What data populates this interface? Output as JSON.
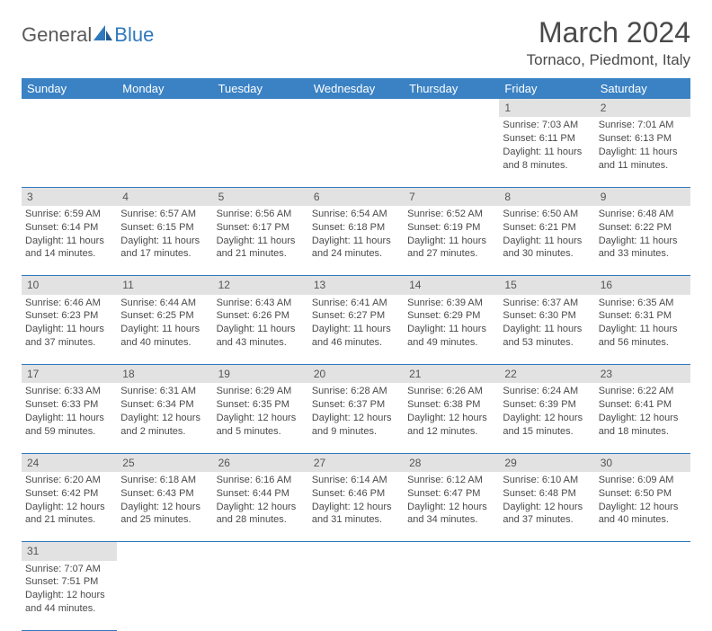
{
  "logo": {
    "text1": "General",
    "text2": "Blue"
  },
  "title": "March 2024",
  "location": "Tornaco, Piedmont, Italy",
  "colors": {
    "header_bg": "#3a82c4",
    "header_text": "#ffffff",
    "daynum_bg": "#e2e2e2",
    "row_border": "#2f78bd",
    "body_text": "#4a4a4a"
  },
  "daysOfWeek": [
    "Sunday",
    "Monday",
    "Tuesday",
    "Wednesday",
    "Thursday",
    "Friday",
    "Saturday"
  ],
  "weeks": [
    [
      null,
      null,
      null,
      null,
      null,
      {
        "n": "1",
        "sr": "Sunrise: 7:03 AM",
        "ss": "Sunset: 6:11 PM",
        "d1": "Daylight: 11 hours",
        "d2": "and 8 minutes."
      },
      {
        "n": "2",
        "sr": "Sunrise: 7:01 AM",
        "ss": "Sunset: 6:13 PM",
        "d1": "Daylight: 11 hours",
        "d2": "and 11 minutes."
      }
    ],
    [
      {
        "n": "3",
        "sr": "Sunrise: 6:59 AM",
        "ss": "Sunset: 6:14 PM",
        "d1": "Daylight: 11 hours",
        "d2": "and 14 minutes."
      },
      {
        "n": "4",
        "sr": "Sunrise: 6:57 AM",
        "ss": "Sunset: 6:15 PM",
        "d1": "Daylight: 11 hours",
        "d2": "and 17 minutes."
      },
      {
        "n": "5",
        "sr": "Sunrise: 6:56 AM",
        "ss": "Sunset: 6:17 PM",
        "d1": "Daylight: 11 hours",
        "d2": "and 21 minutes."
      },
      {
        "n": "6",
        "sr": "Sunrise: 6:54 AM",
        "ss": "Sunset: 6:18 PM",
        "d1": "Daylight: 11 hours",
        "d2": "and 24 minutes."
      },
      {
        "n": "7",
        "sr": "Sunrise: 6:52 AM",
        "ss": "Sunset: 6:19 PM",
        "d1": "Daylight: 11 hours",
        "d2": "and 27 minutes."
      },
      {
        "n": "8",
        "sr": "Sunrise: 6:50 AM",
        "ss": "Sunset: 6:21 PM",
        "d1": "Daylight: 11 hours",
        "d2": "and 30 minutes."
      },
      {
        "n": "9",
        "sr": "Sunrise: 6:48 AM",
        "ss": "Sunset: 6:22 PM",
        "d1": "Daylight: 11 hours",
        "d2": "and 33 minutes."
      }
    ],
    [
      {
        "n": "10",
        "sr": "Sunrise: 6:46 AM",
        "ss": "Sunset: 6:23 PM",
        "d1": "Daylight: 11 hours",
        "d2": "and 37 minutes."
      },
      {
        "n": "11",
        "sr": "Sunrise: 6:44 AM",
        "ss": "Sunset: 6:25 PM",
        "d1": "Daylight: 11 hours",
        "d2": "and 40 minutes."
      },
      {
        "n": "12",
        "sr": "Sunrise: 6:43 AM",
        "ss": "Sunset: 6:26 PM",
        "d1": "Daylight: 11 hours",
        "d2": "and 43 minutes."
      },
      {
        "n": "13",
        "sr": "Sunrise: 6:41 AM",
        "ss": "Sunset: 6:27 PM",
        "d1": "Daylight: 11 hours",
        "d2": "and 46 minutes."
      },
      {
        "n": "14",
        "sr": "Sunrise: 6:39 AM",
        "ss": "Sunset: 6:29 PM",
        "d1": "Daylight: 11 hours",
        "d2": "and 49 minutes."
      },
      {
        "n": "15",
        "sr": "Sunrise: 6:37 AM",
        "ss": "Sunset: 6:30 PM",
        "d1": "Daylight: 11 hours",
        "d2": "and 53 minutes."
      },
      {
        "n": "16",
        "sr": "Sunrise: 6:35 AM",
        "ss": "Sunset: 6:31 PM",
        "d1": "Daylight: 11 hours",
        "d2": "and 56 minutes."
      }
    ],
    [
      {
        "n": "17",
        "sr": "Sunrise: 6:33 AM",
        "ss": "Sunset: 6:33 PM",
        "d1": "Daylight: 11 hours",
        "d2": "and 59 minutes."
      },
      {
        "n": "18",
        "sr": "Sunrise: 6:31 AM",
        "ss": "Sunset: 6:34 PM",
        "d1": "Daylight: 12 hours",
        "d2": "and 2 minutes."
      },
      {
        "n": "19",
        "sr": "Sunrise: 6:29 AM",
        "ss": "Sunset: 6:35 PM",
        "d1": "Daylight: 12 hours",
        "d2": "and 5 minutes."
      },
      {
        "n": "20",
        "sr": "Sunrise: 6:28 AM",
        "ss": "Sunset: 6:37 PM",
        "d1": "Daylight: 12 hours",
        "d2": "and 9 minutes."
      },
      {
        "n": "21",
        "sr": "Sunrise: 6:26 AM",
        "ss": "Sunset: 6:38 PM",
        "d1": "Daylight: 12 hours",
        "d2": "and 12 minutes."
      },
      {
        "n": "22",
        "sr": "Sunrise: 6:24 AM",
        "ss": "Sunset: 6:39 PM",
        "d1": "Daylight: 12 hours",
        "d2": "and 15 minutes."
      },
      {
        "n": "23",
        "sr": "Sunrise: 6:22 AM",
        "ss": "Sunset: 6:41 PM",
        "d1": "Daylight: 12 hours",
        "d2": "and 18 minutes."
      }
    ],
    [
      {
        "n": "24",
        "sr": "Sunrise: 6:20 AM",
        "ss": "Sunset: 6:42 PM",
        "d1": "Daylight: 12 hours",
        "d2": "and 21 minutes."
      },
      {
        "n": "25",
        "sr": "Sunrise: 6:18 AM",
        "ss": "Sunset: 6:43 PM",
        "d1": "Daylight: 12 hours",
        "d2": "and 25 minutes."
      },
      {
        "n": "26",
        "sr": "Sunrise: 6:16 AM",
        "ss": "Sunset: 6:44 PM",
        "d1": "Daylight: 12 hours",
        "d2": "and 28 minutes."
      },
      {
        "n": "27",
        "sr": "Sunrise: 6:14 AM",
        "ss": "Sunset: 6:46 PM",
        "d1": "Daylight: 12 hours",
        "d2": "and 31 minutes."
      },
      {
        "n": "28",
        "sr": "Sunrise: 6:12 AM",
        "ss": "Sunset: 6:47 PM",
        "d1": "Daylight: 12 hours",
        "d2": "and 34 minutes."
      },
      {
        "n": "29",
        "sr": "Sunrise: 6:10 AM",
        "ss": "Sunset: 6:48 PM",
        "d1": "Daylight: 12 hours",
        "d2": "and 37 minutes."
      },
      {
        "n": "30",
        "sr": "Sunrise: 6:09 AM",
        "ss": "Sunset: 6:50 PM",
        "d1": "Daylight: 12 hours",
        "d2": "and 40 minutes."
      }
    ],
    [
      {
        "n": "31",
        "sr": "Sunrise: 7:07 AM",
        "ss": "Sunset: 7:51 PM",
        "d1": "Daylight: 12 hours",
        "d2": "and 44 minutes."
      },
      null,
      null,
      null,
      null,
      null,
      null
    ]
  ]
}
